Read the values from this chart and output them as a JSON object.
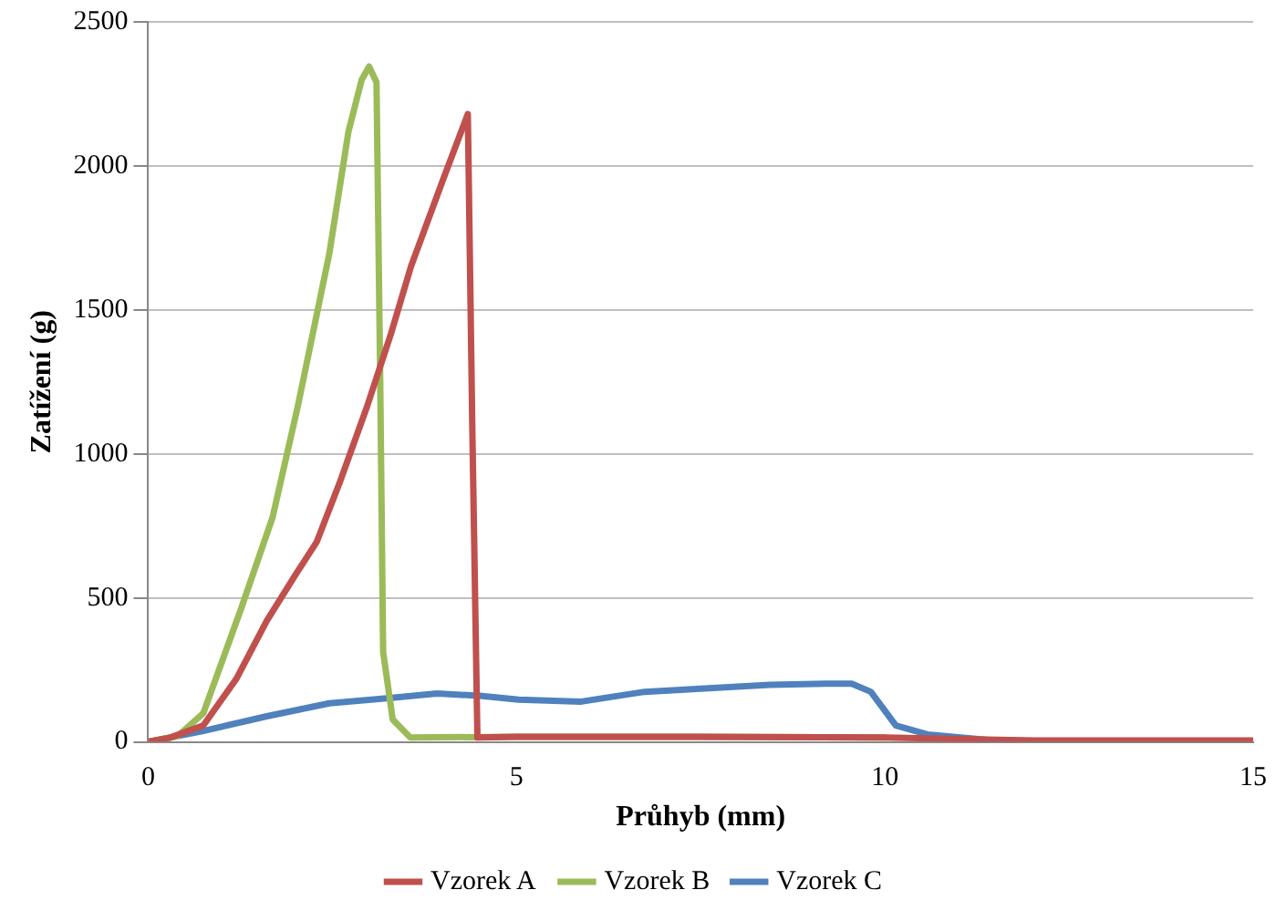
{
  "chart_data": {
    "type": "line",
    "xlabel": "Průhyb (mm)",
    "ylabel": "Zatížení (g)",
    "xlim": [
      0,
      15
    ],
    "xticks": [
      0,
      5,
      10,
      15
    ],
    "ylim": [
      0,
      2500
    ],
    "yticks": [
      0,
      500,
      1000,
      1500,
      2000,
      2500
    ],
    "grid": "y",
    "legend": "bottom",
    "marker": "none",
    "line_style": "solid",
    "series": [
      {
        "name": "Vzorek A",
        "color": "#c0504d",
        "x": [
          0,
          0.3,
          0.75,
          1.2,
          1.61,
          2.0,
          2.29,
          2.6,
          2.97,
          3.3,
          3.57,
          4.0,
          4.34,
          4.4,
          4.47,
          5,
          7,
          10,
          12,
          15
        ],
        "values": [
          0,
          15,
          57,
          220,
          420,
          580,
          695,
          900,
          1163,
          1420,
          1652,
          1950,
          2180,
          1100,
          15,
          18,
          18,
          15,
          5,
          5
        ]
      },
      {
        "name": "Vzorek B",
        "color": "#9bbb59",
        "x": [
          0,
          0.4,
          0.75,
          1.26,
          1.69,
          2.03,
          2.46,
          2.72,
          2.9,
          3.0,
          3.1,
          3.15,
          3.19,
          3.32,
          3.56,
          5,
          7,
          10
        ],
        "values": [
          0,
          20,
          100,
          461,
          780,
          1163,
          1696,
          2120,
          2300,
          2345,
          2290,
          1270,
          313,
          78,
          15,
          18,
          18,
          15
        ]
      },
      {
        "name": "Vzorek C",
        "color": "#4f81bd",
        "x": [
          0,
          0.75,
          1.61,
          2.46,
          3.31,
          3.92,
          4.5,
          5.03,
          5.88,
          6.74,
          7.5,
          8.44,
          9.2,
          9.55,
          9.81,
          10.15,
          10.58,
          11.44,
          12.5,
          15
        ],
        "values": [
          0,
          38,
          89,
          134,
          153,
          168,
          160,
          147,
          140,
          174,
          185,
          198,
          202,
          202,
          174,
          57,
          26,
          6,
          2,
          2
        ]
      }
    ]
  }
}
